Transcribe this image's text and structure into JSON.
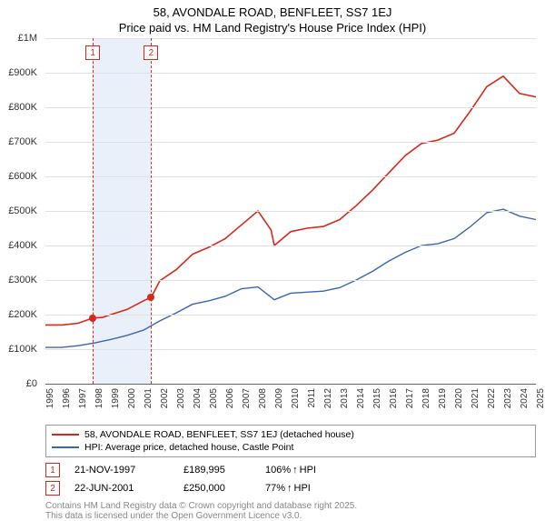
{
  "title_line1": "58, AVONDALE ROAD, BENFLEET, SS7 1EJ",
  "title_line2": "Price paid vs. HM Land Registry's House Price Index (HPI)",
  "chart": {
    "type": "line",
    "background_color": "#ffffff",
    "grid_color": "#e0e0e0",
    "y_axis": {
      "min": 0,
      "max": 1000000,
      "ticks": [
        0,
        100000,
        200000,
        300000,
        400000,
        500000,
        600000,
        700000,
        800000,
        900000,
        1000000
      ],
      "labels": [
        "£0",
        "£100K",
        "£200K",
        "£300K",
        "£400K",
        "£500K",
        "£600K",
        "£700K",
        "£800K",
        "£900K",
        "£1M"
      ],
      "label_fontsize": 11
    },
    "x_axis": {
      "min": 1995,
      "max": 2025,
      "ticks": [
        1995,
        1996,
        1997,
        1998,
        1999,
        2000,
        2001,
        2002,
        2003,
        2004,
        2005,
        2006,
        2007,
        2008,
        2009,
        2010,
        2011,
        2012,
        2013,
        2014,
        2015,
        2016,
        2017,
        2018,
        2019,
        2020,
        2021,
        2022,
        2023,
        2024,
        2025
      ],
      "label_fontsize": 10
    },
    "transaction_band": {
      "start": 1997.9,
      "end": 2001.47,
      "color": "#eaf0fa"
    },
    "series": [
      {
        "name": "58, AVONDALE ROAD, BENFLEET, SS7 1EJ (detached house)",
        "color": "#d6281b",
        "width": 1.6,
        "data": [
          [
            1995,
            170000
          ],
          [
            1996,
            170000
          ],
          [
            1997,
            175000
          ],
          [
            1997.9,
            189995
          ],
          [
            1998.5,
            192000
          ],
          [
            1999,
            200000
          ],
          [
            2000,
            215000
          ],
          [
            2001,
            240000
          ],
          [
            2001.47,
            250000
          ],
          [
            2002,
            298000
          ],
          [
            2003,
            330000
          ],
          [
            2004,
            375000
          ],
          [
            2005,
            395000
          ],
          [
            2006,
            420000
          ],
          [
            2007,
            460000
          ],
          [
            2008,
            500000
          ],
          [
            2008.8,
            445000
          ],
          [
            2009,
            400000
          ],
          [
            2010,
            440000
          ],
          [
            2011,
            450000
          ],
          [
            2012,
            455000
          ],
          [
            2013,
            475000
          ],
          [
            2014,
            515000
          ],
          [
            2015,
            560000
          ],
          [
            2016,
            610000
          ],
          [
            2017,
            660000
          ],
          [
            2018,
            695000
          ],
          [
            2019,
            705000
          ],
          [
            2020,
            725000
          ],
          [
            2021,
            790000
          ],
          [
            2022,
            860000
          ],
          [
            2023,
            890000
          ],
          [
            2024,
            840000
          ],
          [
            2025,
            830000
          ]
        ]
      },
      {
        "name": "HPI: Average price, detached house, Castle Point",
        "color": "#3a66b0",
        "width": 1.4,
        "data": [
          [
            1995,
            105000
          ],
          [
            1996,
            105000
          ],
          [
            1997,
            110000
          ],
          [
            1998,
            118000
          ],
          [
            1999,
            128000
          ],
          [
            2000,
            140000
          ],
          [
            2001,
            155000
          ],
          [
            2002,
            182000
          ],
          [
            2003,
            205000
          ],
          [
            2004,
            230000
          ],
          [
            2005,
            240000
          ],
          [
            2006,
            253000
          ],
          [
            2007,
            275000
          ],
          [
            2008,
            280000
          ],
          [
            2009,
            243000
          ],
          [
            2010,
            262000
          ],
          [
            2011,
            265000
          ],
          [
            2012,
            268000
          ],
          [
            2013,
            278000
          ],
          [
            2014,
            300000
          ],
          [
            2015,
            325000
          ],
          [
            2016,
            355000
          ],
          [
            2017,
            380000
          ],
          [
            2018,
            400000
          ],
          [
            2019,
            405000
          ],
          [
            2020,
            420000
          ],
          [
            2021,
            455000
          ],
          [
            2022,
            495000
          ],
          [
            2023,
            505000
          ],
          [
            2024,
            485000
          ],
          [
            2025,
            475000
          ]
        ]
      }
    ],
    "transactions": [
      {
        "n": "1",
        "year": 1997.9,
        "price": 189995,
        "date_label": "21-NOV-1997",
        "price_label": "£189,995",
        "pct_label": "106%",
        "suffix": "HPI",
        "marker_color": "#d6281b"
      },
      {
        "n": "2",
        "year": 2001.47,
        "price": 250000,
        "date_label": "22-JUN-2001",
        "price_label": "£250,000",
        "pct_label": "77%",
        "suffix": "HPI",
        "marker_color": "#d6281b"
      }
    ]
  },
  "footer_line1": "Contains HM Land Registry data © Crown copyright and database right 2025.",
  "footer_line2": "This data is licensed under the Open Government Licence v3.0.",
  "arrow_glyph": "↑"
}
